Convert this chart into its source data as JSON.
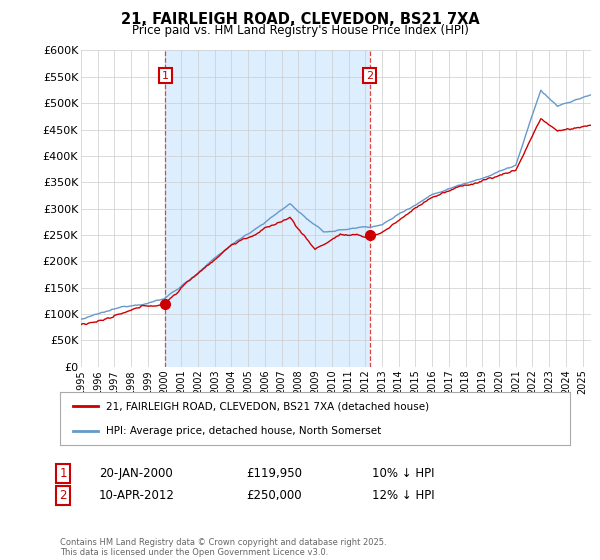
{
  "title_line1": "21, FAIRLEIGH ROAD, CLEVEDON, BS21 7XA",
  "title_line2": "Price paid vs. HM Land Registry's House Price Index (HPI)",
  "ylim": [
    0,
    600000
  ],
  "yticks": [
    0,
    50000,
    100000,
    150000,
    200000,
    250000,
    300000,
    350000,
    400000,
    450000,
    500000,
    550000,
    600000
  ],
  "ytick_labels": [
    "£0",
    "£50K",
    "£100K",
    "£150K",
    "£200K",
    "£250K",
    "£300K",
    "£350K",
    "£400K",
    "£450K",
    "£500K",
    "£550K",
    "£600K"
  ],
  "hpi_color": "#6699cc",
  "price_color": "#cc0000",
  "vline_color": "#dd4444",
  "shade_color": "#ddeeff",
  "marker1_year": 2000.05,
  "marker1_value": 119950,
  "marker2_year": 2012.27,
  "marker2_value": 250000,
  "vline1_year": 2000.05,
  "vline2_year": 2012.27,
  "legend_line1": "21, FAIRLEIGH ROAD, CLEVEDON, BS21 7XA (detached house)",
  "legend_line2": "HPI: Average price, detached house, North Somerset",
  "table_row1": [
    "1",
    "20-JAN-2000",
    "£119,950",
    "10% ↓ HPI"
  ],
  "table_row2": [
    "2",
    "10-APR-2012",
    "£250,000",
    "12% ↓ HPI"
  ],
  "footnote": "Contains HM Land Registry data © Crown copyright and database right 2025.\nThis data is licensed under the Open Government Licence v3.0.",
  "background_color": "#ffffff",
  "grid_color": "#cccccc",
  "xlim_start": 1995,
  "xlim_end": 2025.5
}
